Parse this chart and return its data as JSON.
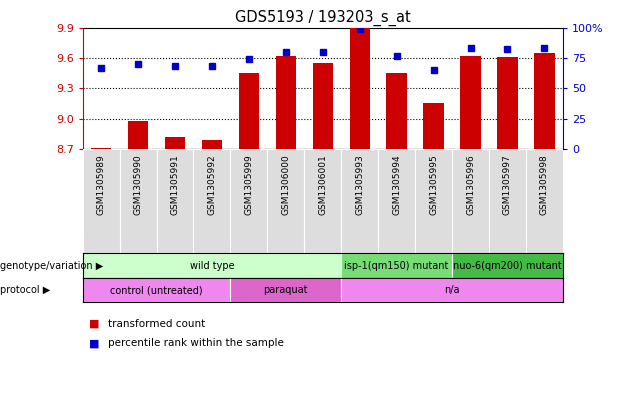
{
  "title": "GDS5193 / 193203_s_at",
  "samples": [
    "GSM1305989",
    "GSM1305990",
    "GSM1305991",
    "GSM1305992",
    "GSM1305999",
    "GSM1306000",
    "GSM1306001",
    "GSM1305993",
    "GSM1305994",
    "GSM1305995",
    "GSM1305996",
    "GSM1305997",
    "GSM1305998"
  ],
  "transformed_count": [
    8.71,
    8.98,
    8.82,
    8.79,
    9.45,
    9.62,
    9.55,
    9.9,
    9.45,
    9.16,
    9.62,
    9.61,
    9.65
  ],
  "percentile_rank": [
    67,
    70,
    68,
    68,
    74,
    80,
    80,
    99,
    77,
    65,
    83,
    82,
    83
  ],
  "bar_color": "#cc0000",
  "dot_color": "#0000cc",
  "ymin": 8.7,
  "ymax": 9.9,
  "yticks": [
    8.7,
    9.0,
    9.3,
    9.6,
    9.9
  ],
  "right_yticks": [
    0,
    25,
    50,
    75,
    100
  ],
  "right_ytick_labels": [
    "0",
    "25",
    "50",
    "75",
    "100%"
  ],
  "genotype_groups": [
    {
      "label": "wild type",
      "start": 0,
      "end": 7,
      "color": "#ccffcc"
    },
    {
      "label": "isp-1(qm150) mutant",
      "start": 7,
      "end": 10,
      "color": "#77dd77"
    },
    {
      "label": "nuo-6(qm200) mutant",
      "start": 10,
      "end": 13,
      "color": "#44bb44"
    }
  ],
  "protocol_groups": [
    {
      "label": "control (untreated)",
      "start": 0,
      "end": 4,
      "color": "#ee88ee"
    },
    {
      "label": "paraquat",
      "start": 4,
      "end": 7,
      "color": "#dd66cc"
    },
    {
      "label": "n/a",
      "start": 7,
      "end": 13,
      "color": "#ee88ee"
    }
  ],
  "sample_box_color": "#dddddd",
  "background_color": "#ffffff"
}
